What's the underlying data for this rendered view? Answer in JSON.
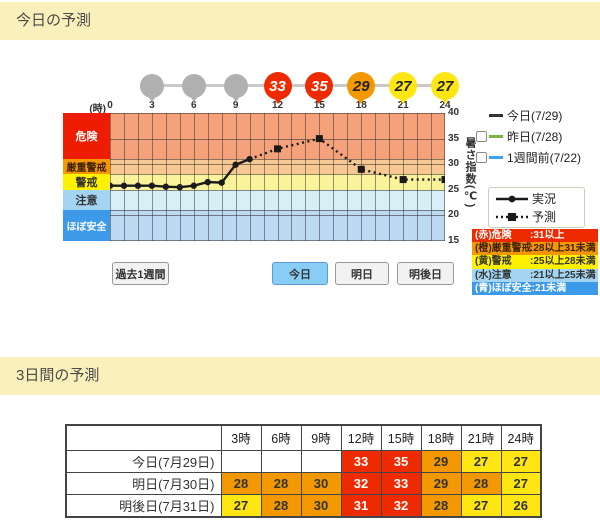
{
  "colors": {
    "header_bg": "#faf0bb",
    "red": "#ee2b00",
    "orange": "#f39800",
    "yellow": "#ffe612",
    "yellow_bright": "#fff100",
    "sky": "#a3d4f2",
    "blue": "#3d9ae8",
    "gray": "#b0b0b0",
    "line": "#1a1a1a",
    "active_button_bg": "#87cdf5"
  },
  "sections": {
    "today_title": "今日の予測",
    "three_day_title": "3日間の予測"
  },
  "chart_data": {
    "type": "line",
    "x_unit_label": "(時)",
    "x_ticks": [
      0,
      3,
      6,
      9,
      12,
      15,
      18,
      21,
      24
    ],
    "y_ticks": [
      40,
      35,
      30,
      25,
      20,
      15
    ],
    "y_range": [
      15,
      40
    ],
    "ylabel": "暑さ指数(℃)",
    "grid_hlines": [
      40,
      35,
      31,
      30,
      28,
      25,
      21,
      20,
      15
    ],
    "series": [
      {
        "name": "実況",
        "style": "solid",
        "marker": "circle",
        "points": [
          [
            0,
            25.8
          ],
          [
            1,
            25.8
          ],
          [
            2,
            25.8
          ],
          [
            3,
            25.8
          ],
          [
            4,
            25.6
          ],
          [
            5,
            25.5
          ],
          [
            6,
            25.8
          ],
          [
            7,
            26.5
          ],
          [
            8,
            26.4
          ],
          [
            9,
            29.9
          ],
          [
            10,
            31.0
          ]
        ]
      },
      {
        "name": "予測",
        "style": "dotted",
        "marker": "square",
        "points": [
          [
            10,
            31.0
          ],
          [
            12,
            33
          ],
          [
            15,
            35
          ],
          [
            18,
            29
          ],
          [
            21,
            27
          ],
          [
            24,
            27
          ]
        ]
      }
    ],
    "balloons": [
      {
        "hour": 3,
        "value": "",
        "level": "gray"
      },
      {
        "hour": 6,
        "value": "",
        "level": "gray"
      },
      {
        "hour": 9,
        "value": "",
        "level": "gray"
      },
      {
        "hour": 12,
        "value": "33",
        "level": "red"
      },
      {
        "hour": 15,
        "value": "35",
        "level": "red"
      },
      {
        "hour": 18,
        "value": "29",
        "level": "orange"
      },
      {
        "hour": 21,
        "value": "27",
        "level": "yellow"
      },
      {
        "hour": 24,
        "value": "27",
        "level": "yellow"
      }
    ],
    "bands": [
      {
        "name": "危険",
        "min": 31,
        "max": 40,
        "band_color": "#f5a27b",
        "box_color": "#ee1c00",
        "box_text": "#ffffff"
      },
      {
        "name": "厳重警戒",
        "min": 28,
        "max": 31,
        "band_color": "#f8c893",
        "box_color": "#f39800",
        "box_text": "#402000"
      },
      {
        "name": "警戒",
        "min": 25,
        "max": 28,
        "band_color": "#faf399",
        "box_color": "#fff100",
        "box_text": "#333333"
      },
      {
        "name": "注意",
        "min": 21,
        "max": 25,
        "band_color": "#d9eff7",
        "box_color": "#a3d4f2",
        "box_text": "#333333"
      },
      {
        "name": "ほぼ安全",
        "min": 15,
        "max": 21,
        "band_color": "#bcd9f1",
        "box_color": "#3d9ae8",
        "box_text": "#ffffff"
      }
    ],
    "overlay_legend": [
      {
        "label": "今日(7/29)",
        "line_color": "#333333",
        "checkbox": false
      },
      {
        "label": "昨日(7/28)",
        "line_color": "#7cb342",
        "checkbox": true
      },
      {
        "label": "1週間前(7/22)",
        "line_color": "#3da1f5",
        "checkbox": true
      }
    ],
    "line_legend": {
      "actual": "実況",
      "forecast": "予測"
    },
    "scale_legend": [
      {
        "name": "(赤)危険",
        "range": ":31以上",
        "bg": "#ee2b00",
        "fg": "#ffffff"
      },
      {
        "name": "(橙)厳重警戒",
        "range": ":28以上31未満",
        "bg": "#f39800",
        "fg": "#402000"
      },
      {
        "name": "(黄)警戒",
        "range": ":25以上28未満",
        "bg": "#fff100",
        "fg": "#333333"
      },
      {
        "name": "(水)注意",
        "range": ":21以上25未満",
        "bg": "#a3d4f2",
        "fg": "#333333"
      },
      {
        "name": "(青)ほぼ安全",
        "range": ":21未満",
        "bg": "#3d9ae8",
        "fg": "#ffffff"
      }
    ]
  },
  "buttons": {
    "past_week": "過去1週間",
    "today": "今日",
    "tomorrow": "明日",
    "day_after": "明後日"
  },
  "table": {
    "headers": [
      "",
      "3時",
      "6時",
      "9時",
      "12時",
      "15時",
      "18時",
      "21時",
      "24時"
    ],
    "rows": [
      {
        "label": "今日(7月29日)",
        "values": [
          "",
          "",
          "",
          "33",
          "35",
          "29",
          "27",
          "27"
        ]
      },
      {
        "label": "明日(7月30日)",
        "values": [
          "28",
          "28",
          "30",
          "32",
          "33",
          "29",
          "28",
          "27"
        ]
      },
      {
        "label": "明後日(7月31日)",
        "values": [
          "27",
          "28",
          "30",
          "31",
          "32",
          "28",
          "27",
          "26"
        ]
      }
    ]
  }
}
